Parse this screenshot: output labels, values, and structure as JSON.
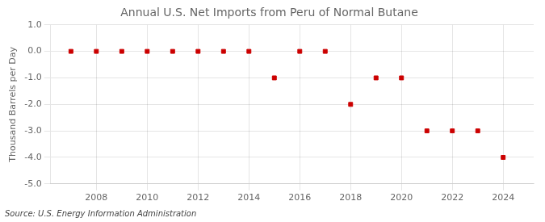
{
  "chart_data": {
    "type": "scatter",
    "title": "Annual U.S. Net Imports from Peru of Normal Butane",
    "ylabel": "Thousand Barrels per Day",
    "annotation": "Source: U.S. Energy Information Administration",
    "x": [
      2007,
      2008,
      2009,
      2010,
      2011,
      2012,
      2013,
      2014,
      2015,
      2016,
      2017,
      2018,
      2019,
      2020,
      2021,
      2022,
      2023,
      2024
    ],
    "values": [
      0,
      0,
      0,
      0,
      0,
      0,
      0,
      0,
      -1.0,
      0,
      0,
      -2.0,
      -1.0,
      -1.0,
      -3.0,
      -3.0,
      -3.0,
      -4.0
    ],
    "color": "#cc0000",
    "marker": "square",
    "xlim": [
      2006.2,
      2025.2
    ],
    "xticks": [
      2008,
      2010,
      2012,
      2014,
      2016,
      2018,
      2020,
      2022,
      2024
    ],
    "ylim": [
      -5.0,
      1.0
    ],
    "yticks": [
      {
        "value": -5.0,
        "label": "-5.0"
      },
      {
        "value": -4.0,
        "label": "-4.0"
      },
      {
        "value": -3.0,
        "label": "-3.0"
      },
      {
        "value": -2.0,
        "label": "-2.0"
      },
      {
        "value": -1.0,
        "label": "-1.0"
      },
      {
        "value": 0.0,
        "label": "0.0"
      },
      {
        "value": 1.0,
        "label": "1.0"
      }
    ],
    "grid": true
  }
}
